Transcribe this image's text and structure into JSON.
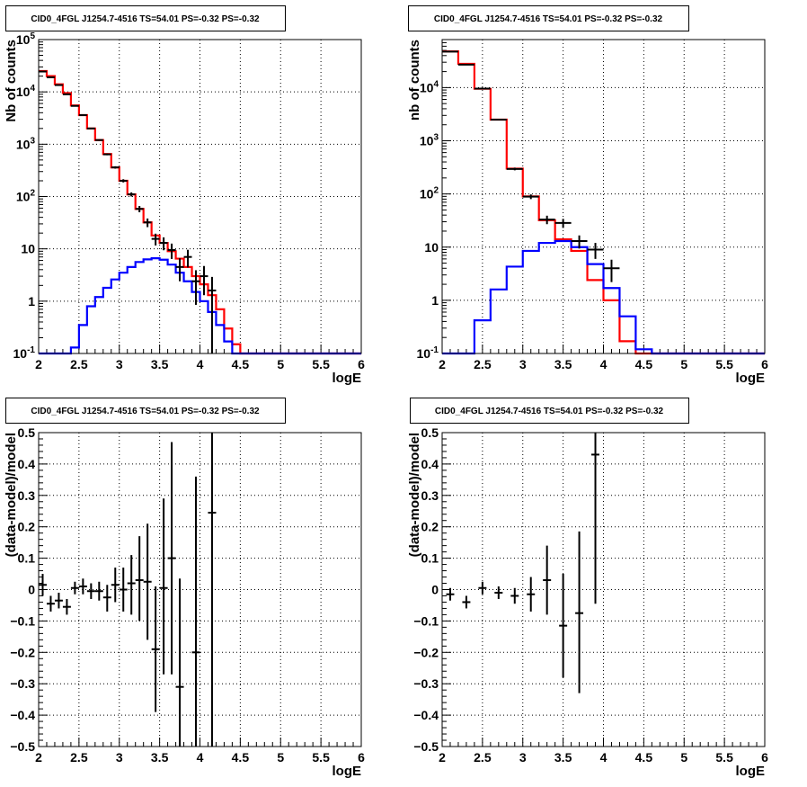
{
  "chart_data": [
    {
      "type": "histogram-step",
      "title": "CID0_4FGL J1254.7-4516 TS=54.01 PS=-0.32 PS=-0.32",
      "xlabel": "logE",
      "ylabel": "Nb of counts",
      "xlim": [
        2,
        6
      ],
      "ylim": [
        0.1,
        100000
      ],
      "yscale": "log",
      "grid": true,
      "x_ticks": [
        "2",
        "2.5",
        "3",
        "3.5",
        "4",
        "4.5",
        "5",
        "5.5",
        "6"
      ],
      "y_ticks": [
        "10^-1",
        "1",
        "10",
        "10^2",
        "10^3",
        "10^4",
        "10^5"
      ],
      "bin_edges": [
        2.0,
        2.1,
        2.2,
        2.3,
        2.4,
        2.5,
        2.6,
        2.7,
        2.8,
        2.9,
        3.0,
        3.1,
        3.2,
        3.3,
        3.4,
        3.5,
        3.6,
        3.7,
        3.8,
        3.9,
        4.0,
        4.1,
        4.2,
        4.3,
        4.4,
        4.5,
        4.6,
        4.7,
        4.8,
        4.9,
        5.0,
        5.1,
        5.2,
        5.3,
        5.4,
        5.5,
        5.6,
        5.7,
        5.8,
        5.9,
        6.0
      ],
      "series": [
        {
          "color": "#ff0000",
          "values": [
            25000,
            20000,
            14000,
            9500,
            5500,
            3600,
            2000,
            1200,
            650,
            360,
            200,
            110,
            58,
            32,
            18,
            13,
            9,
            6.5,
            4.5,
            3,
            2.1,
            1.3,
            0.7,
            0.3,
            0.15,
            0.1,
            0.1,
            0.1,
            0.1,
            0.1,
            0.1,
            0.1,
            0.1,
            0.1,
            0.1,
            0.1,
            0.1,
            0.1,
            0.1,
            0.1
          ]
        },
        {
          "color": "#0000ff",
          "values": [
            0.1,
            0.1,
            0.1,
            0.1,
            0.13,
            0.35,
            0.8,
            1.2,
            1.8,
            2.6,
            3.5,
            4.5,
            5.6,
            6.3,
            6.6,
            6.2,
            5.0,
            3.5,
            2.4,
            1.5,
            1.0,
            0.62,
            0.35,
            0.17,
            0.1,
            0.1,
            0.1,
            0.1,
            0.1,
            0.1,
            0.1,
            0.1,
            0.1,
            0.1,
            0.1,
            0.1,
            0.1,
            0.1,
            0.1,
            0.1
          ]
        }
      ],
      "points": [
        {
          "x": 2.05,
          "y": 24500,
          "lo": 24300,
          "hi": 24700
        },
        {
          "x": 2.15,
          "y": 19000,
          "lo": 18800,
          "hi": 19200
        },
        {
          "x": 2.25,
          "y": 13500,
          "lo": 13300,
          "hi": 13700
        },
        {
          "x": 2.35,
          "y": 9000,
          "lo": 8800,
          "hi": 9200
        },
        {
          "x": 2.45,
          "y": 5400,
          "lo": 5300,
          "hi": 5500
        },
        {
          "x": 2.55,
          "y": 3600,
          "lo": 3500,
          "hi": 3700
        },
        {
          "x": 2.65,
          "y": 2000,
          "lo": 1950,
          "hi": 2050
        },
        {
          "x": 2.75,
          "y": 1200,
          "lo": 1160,
          "hi": 1240
        },
        {
          "x": 2.85,
          "y": 640,
          "lo": 615,
          "hi": 665
        },
        {
          "x": 2.95,
          "y": 360,
          "lo": 341,
          "hi": 379
        },
        {
          "x": 3.05,
          "y": 200,
          "lo": 186,
          "hi": 214
        },
        {
          "x": 3.15,
          "y": 110,
          "lo": 100,
          "hi": 120
        },
        {
          "x": 3.25,
          "y": 58,
          "lo": 50,
          "hi": 66
        },
        {
          "x": 3.35,
          "y": 32,
          "lo": 26,
          "hi": 38
        },
        {
          "x": 3.45,
          "y": 15.5,
          "lo": 11.6,
          "hi": 19.5
        },
        {
          "x": 3.55,
          "y": 13,
          "lo": 9.4,
          "hi": 16.6
        },
        {
          "x": 3.65,
          "y": 9.5,
          "lo": 6.4,
          "hi": 12.6
        },
        {
          "x": 3.75,
          "y": 4.5,
          "lo": 2.4,
          "hi": 6.6
        },
        {
          "x": 3.85,
          "y": 7,
          "lo": 4.4,
          "hi": 9.6
        },
        {
          "x": 3.95,
          "y": 2.4,
          "lo": 0.85,
          "hi": 3.9
        },
        {
          "x": 4.05,
          "y": 3,
          "lo": 1.3,
          "hi": 4.7
        },
        {
          "x": 4.15,
          "y": 1.6,
          "lo": 0.1,
          "hi": 2.9
        }
      ]
    },
    {
      "type": "histogram-step",
      "title": "CID0_4FGL J1254.7-4516 TS=54.01 PS=-0.32 PS=-0.32",
      "xlabel": "logE",
      "ylabel": "nb of counts",
      "xlim": [
        2,
        6
      ],
      "ylim": [
        0.1,
        80000
      ],
      "yscale": "log",
      "grid": true,
      "x_ticks": [
        "2",
        "2.5",
        "3",
        "3.5",
        "4",
        "4.5",
        "5",
        "5.5",
        "6"
      ],
      "y_ticks": [
        "10^-1",
        "1",
        "10",
        "10^2",
        "10^3",
        "10^4"
      ],
      "bin_edges": [
        2.0,
        2.2,
        2.4,
        2.6,
        2.8,
        3.0,
        3.2,
        3.4,
        3.6,
        3.8,
        4.0,
        4.2,
        4.4,
        4.6,
        4.8,
        5.0,
        5.2,
        5.4,
        5.6,
        5.8,
        6.0
      ],
      "series": [
        {
          "color": "#ff0000",
          "values": [
            48000,
            28000,
            9500,
            2500,
            300,
            90,
            32,
            14,
            8.5,
            2.4,
            1.0,
            0.17,
            0.1,
            0.1,
            0.1,
            0.1,
            0.1,
            0.1,
            0.1,
            0.1
          ]
        },
        {
          "color": "#0000ff",
          "values": [
            0.1,
            0.1,
            0.42,
            1.6,
            4.3,
            8.5,
            12,
            13,
            10,
            4.8,
            1.7,
            0.5,
            0.12,
            0.1,
            0.1,
            0.1,
            0.1,
            0.1,
            0.1,
            0.1
          ]
        }
      ],
      "points": [
        {
          "x": 2.1,
          "y": 47500,
          "lo": 47300,
          "hi": 47700
        },
        {
          "x": 2.3,
          "y": 27000,
          "lo": 26800,
          "hi": 27200
        },
        {
          "x": 2.5,
          "y": 9600,
          "lo": 9500,
          "hi": 9700
        },
        {
          "x": 2.7,
          "y": 2500,
          "lo": 2450,
          "hi": 2550
        },
        {
          "x": 2.9,
          "y": 295,
          "lo": 278,
          "hi": 312
        },
        {
          "x": 3.1,
          "y": 89,
          "lo": 80,
          "hi": 98
        },
        {
          "x": 3.3,
          "y": 33,
          "lo": 27,
          "hi": 39
        },
        {
          "x": 3.5,
          "y": 28.5,
          "lo": 23,
          "hi": 34
        },
        {
          "x": 3.7,
          "y": 13,
          "lo": 9.4,
          "hi": 16.6
        },
        {
          "x": 3.9,
          "y": 9,
          "lo": 6,
          "hi": 12
        },
        {
          "x": 4.1,
          "y": 4,
          "lo": 2.2,
          "hi": 5.8
        }
      ]
    },
    {
      "type": "scatter-errorbar",
      "title": "CID0_4FGL J1254.7-4516 TS=54.01 PS=-0.32 PS=-0.32",
      "xlabel": "logE",
      "ylabel": "(data-model)/model",
      "xlim": [
        2,
        6
      ],
      "ylim": [
        -0.5,
        0.5
      ],
      "grid": true,
      "x_ticks": [
        "2",
        "2.5",
        "3",
        "3.5",
        "4",
        "4.5",
        "5",
        "5.5",
        "6"
      ],
      "y_ticks": [
        "−0.5",
        "−0.4",
        "−0.3",
        "−0.2",
        "−0.1",
        "0",
        "0.1",
        "0.2",
        "0.3",
        "0.4",
        "0.5"
      ],
      "points": [
        {
          "x": 2.05,
          "y": 0.015,
          "lo": -0.02,
          "hi": 0.05
        },
        {
          "x": 2.15,
          "y": -0.045,
          "lo": -0.07,
          "hi": -0.02
        },
        {
          "x": 2.25,
          "y": -0.035,
          "lo": -0.06,
          "hi": -0.01
        },
        {
          "x": 2.35,
          "y": -0.055,
          "lo": -0.08,
          "hi": -0.03
        },
        {
          "x": 2.45,
          "y": 0.005,
          "lo": -0.015,
          "hi": 0.025
        },
        {
          "x": 2.55,
          "y": 0.01,
          "lo": -0.015,
          "hi": 0.035
        },
        {
          "x": 2.65,
          "y": -0.005,
          "lo": -0.03,
          "hi": 0.02
        },
        {
          "x": 2.75,
          "y": -0.005,
          "lo": -0.035,
          "hi": 0.025
        },
        {
          "x": 2.85,
          "y": -0.025,
          "lo": -0.07,
          "hi": 0.015
        },
        {
          "x": 2.95,
          "y": 0.015,
          "lo": -0.04,
          "hi": 0.07
        },
        {
          "x": 3.05,
          "y": 0.0,
          "lo": -0.07,
          "hi": 0.07
        },
        {
          "x": 3.15,
          "y": 0.02,
          "lo": -0.08,
          "hi": 0.11
        },
        {
          "x": 3.25,
          "y": 0.03,
          "lo": -0.1,
          "hi": 0.17
        },
        {
          "x": 3.35,
          "y": 0.025,
          "lo": -0.16,
          "hi": 0.21
        },
        {
          "x": 3.45,
          "y": -0.19,
          "lo": -0.39,
          "hi": 0.01
        },
        {
          "x": 3.55,
          "y": 0.005,
          "lo": -0.27,
          "hi": 0.29
        },
        {
          "x": 3.65,
          "y": 0.1,
          "lo": -0.27,
          "hi": 0.47
        },
        {
          "x": 3.75,
          "y": -0.31,
          "lo": -0.5,
          "hi": 0.035
        },
        {
          "x": 3.95,
          "y": -0.2,
          "lo": -0.5,
          "hi": 0.36
        },
        {
          "x": 4.15,
          "y": 0.245,
          "lo": -0.5,
          "hi": 0.5
        }
      ]
    },
    {
      "type": "scatter-errorbar",
      "title": "CID0_4FGL J1254.7-4516 TS=54.01 PS=-0.32 PS=-0.32",
      "xlabel": "logE",
      "ylabel": "(data-model)/model",
      "xlim": [
        2,
        6
      ],
      "ylim": [
        -0.5,
        0.5
      ],
      "grid": true,
      "x_ticks": [
        "2",
        "2.5",
        "3",
        "3.5",
        "4",
        "4.5",
        "5",
        "5.5",
        "6"
      ],
      "y_ticks": [
        "−0.5",
        "−0.4",
        "−0.3",
        "−0.2",
        "−0.1",
        "0",
        "0.1",
        "0.2",
        "0.3",
        "0.4",
        "0.5"
      ],
      "points": [
        {
          "x": 2.1,
          "y": -0.015,
          "lo": -0.035,
          "hi": 0.005
        },
        {
          "x": 2.3,
          "y": -0.04,
          "lo": -0.06,
          "hi": -0.02
        },
        {
          "x": 2.5,
          "y": 0.005,
          "lo": -0.015,
          "hi": 0.025
        },
        {
          "x": 2.7,
          "y": -0.01,
          "lo": -0.03,
          "hi": 0.01
        },
        {
          "x": 2.9,
          "y": -0.02,
          "lo": -0.045,
          "hi": 0.005
        },
        {
          "x": 3.1,
          "y": -0.015,
          "lo": -0.07,
          "hi": 0.04
        },
        {
          "x": 3.3,
          "y": 0.03,
          "lo": -0.08,
          "hi": 0.14
        },
        {
          "x": 3.5,
          "y": -0.115,
          "lo": -0.28,
          "hi": 0.05
        },
        {
          "x": 3.7,
          "y": -0.075,
          "lo": -0.33,
          "hi": 0.185
        },
        {
          "x": 3.9,
          "y": 0.43,
          "lo": -0.045,
          "hi": 0.5
        }
      ]
    }
  ]
}
